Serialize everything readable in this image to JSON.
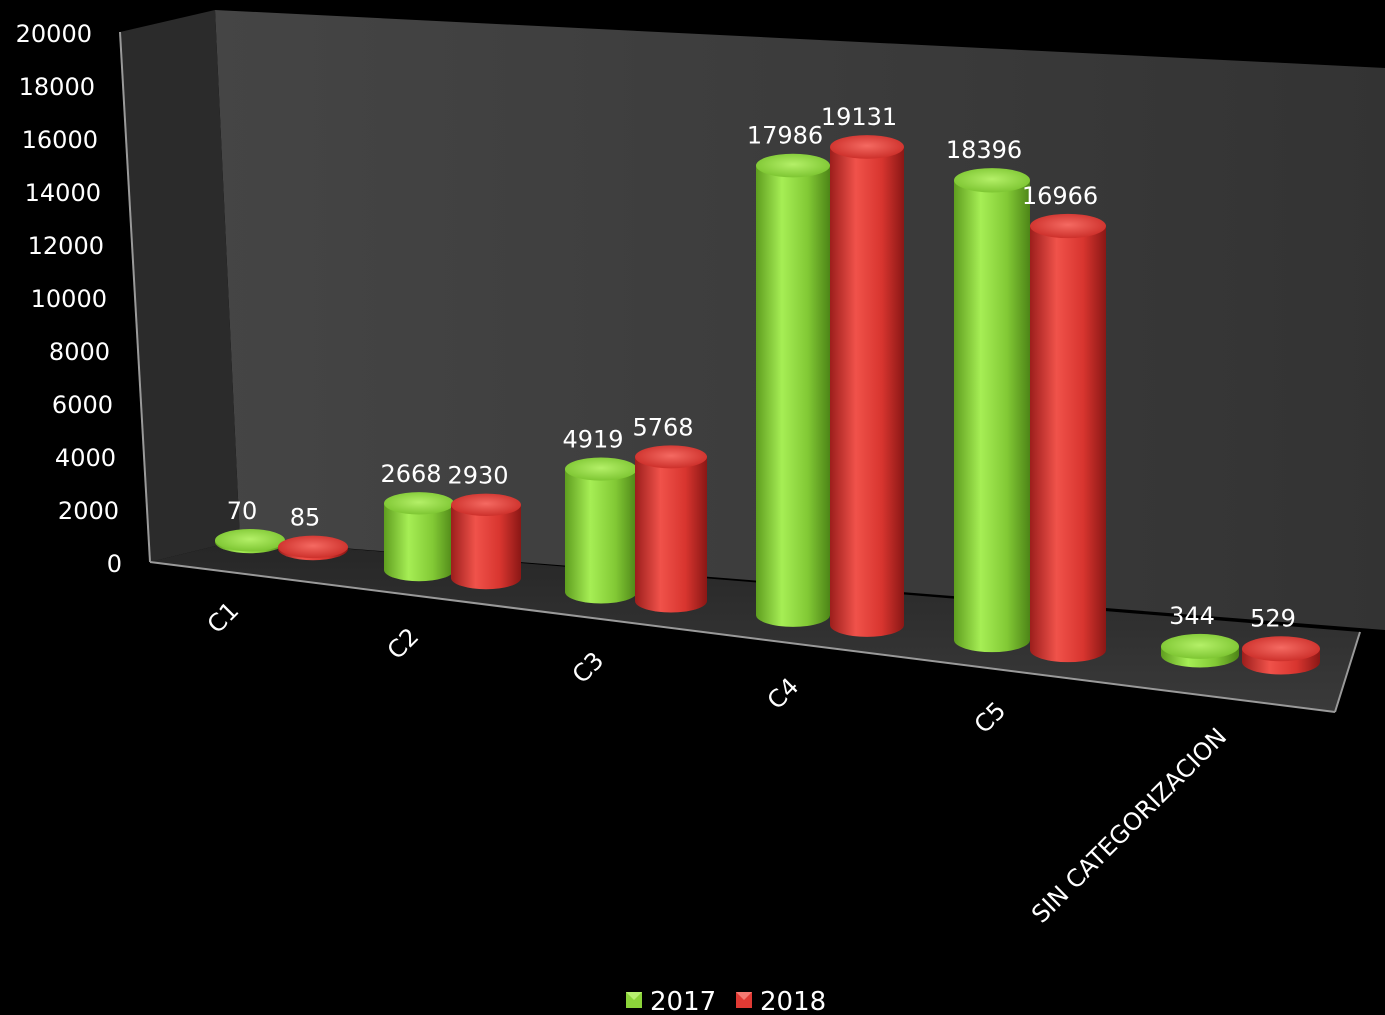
{
  "chart_data": {
    "type": "bar",
    "categories": [
      "C1",
      "C2",
      "C3",
      "C4",
      "C5",
      "SIN CATEGORIZACION"
    ],
    "series": [
      {
        "name": "2017",
        "values": [
          70,
          2668,
          4919,
          17986,
          18396,
          344
        ],
        "color": "#8cd43a"
      },
      {
        "name": "2018",
        "values": [
          85,
          2930,
          5768,
          19131,
          16966,
          529
        ],
        "color": "#e03a34"
      }
    ],
    "data_labels": [
      [
        "70",
        "2668",
        "4919",
        "17986",
        "18396",
        "344"
      ],
      [
        "85",
        "2930",
        "5768",
        "19131",
        "16966",
        "529"
      ]
    ],
    "y_ticks": [
      "0",
      "2000",
      "4000",
      "6000",
      "8000",
      "10000",
      "12000",
      "14000",
      "16000",
      "18000",
      "20000"
    ],
    "ylim": [
      0,
      20000
    ],
    "legend_position": "bottom",
    "style": "3d-cylinder",
    "colors": {
      "background": "#000000",
      "back_wall": "#3a3a3a",
      "floor": "#2a2a2a"
    }
  }
}
